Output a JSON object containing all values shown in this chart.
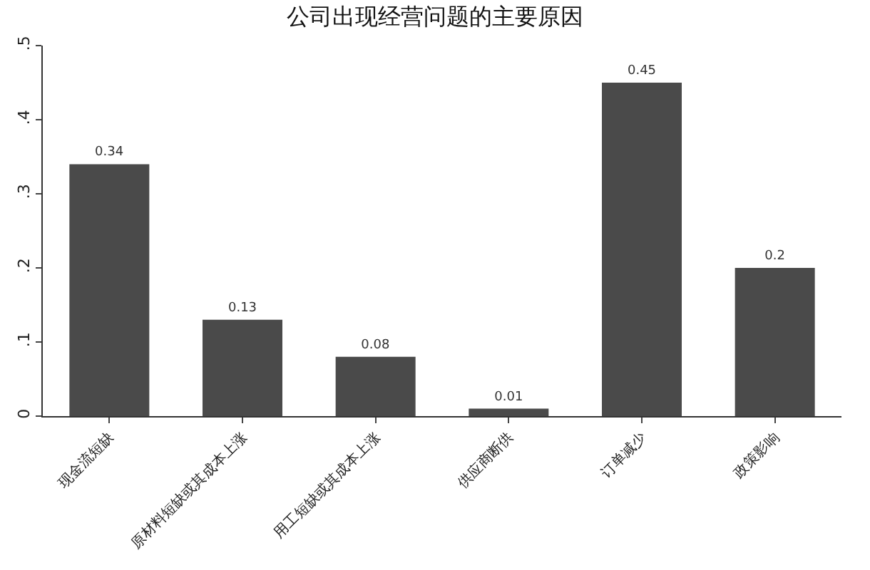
{
  "chart_data": {
    "type": "bar",
    "title": "公司出现经营问题的主要原因",
    "categories": [
      "现金流短缺",
      "原材料短缺或其成本上涨",
      "用工短缺或其成本上涨",
      "供应商断供",
      "订单减少",
      "政策影响"
    ],
    "values": [
      0.34,
      0.13,
      0.08,
      0.01,
      0.45,
      0.2
    ],
    "value_labels": [
      "0.34",
      "0.13",
      "0.08",
      "0.01",
      "0.45",
      "0.2"
    ],
    "color": "#4a4a4a",
    "ylim": [
      0,
      0.5
    ],
    "yticks": [
      {
        "value": 0,
        "label": "0"
      },
      {
        "value": 0.1,
        "label": ".1"
      },
      {
        "value": 0.2,
        "label": ".2"
      },
      {
        "value": 0.3,
        "label": ".3"
      },
      {
        "value": 0.4,
        "label": ".4"
      },
      {
        "value": 0.5,
        "label": ".5"
      }
    ],
    "grid": false
  }
}
